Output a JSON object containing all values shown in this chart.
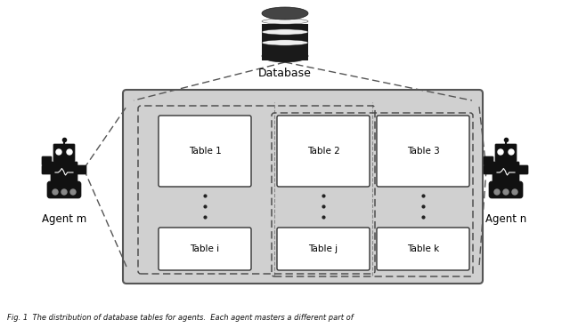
{
  "fig_width": 6.4,
  "fig_height": 3.69,
  "dpi": 100,
  "bg_color": "#ffffff",
  "gray_box_color": "#d0d0d0",
  "white_box_color": "#ffffff",
  "dashed_line_color": "#444444",
  "text_color": "#000000",
  "table_labels_top": [
    "Table 1",
    "Table 2",
    "Table 3"
  ],
  "table_labels_bot": [
    "Table i",
    "Table j",
    "Table k"
  ],
  "database_label": "Database",
  "agent_m_label": "Agent m",
  "agent_n_label": "Agent n",
  "caption": "Fig. 1  The distribution of database tables for agents.  Each agent masters a different part of"
}
